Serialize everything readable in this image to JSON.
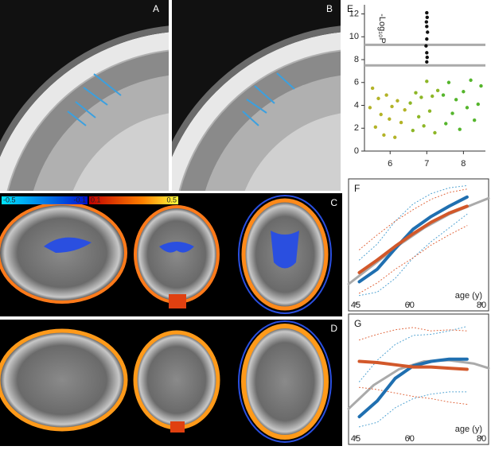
{
  "panels": {
    "a": "A",
    "b": "B",
    "c": "C",
    "d": "D",
    "e": "E",
    "f": "F",
    "g": "G"
  },
  "colorbar": {
    "labels": [
      "-0.5",
      "-0.1",
      "0.1",
      "0.5"
    ]
  },
  "chart_data": [
    {
      "type": "scatter",
      "ylabel": "-Log₁₀P",
      "xlim": [
        5.3,
        8.6
      ],
      "ylim": [
        0,
        12.8
      ],
      "xticks": [
        6,
        7,
        8
      ],
      "yticks": [
        0,
        2,
        4,
        6,
        8,
        10,
        12
      ],
      "hlines": [
        9.3,
        7.5
      ],
      "hline_color": "#aaaaaa",
      "series": [
        {
          "color": "#b3b327",
          "x": [
            5.45,
            5.52,
            5.6,
            5.68,
            5.75,
            5.83,
            5.9,
            5.98,
            6.05,
            6.13,
            6.2,
            6.3,
            6.4
          ],
          "values": [
            3.8,
            5.5,
            2.1,
            4.6,
            3.2,
            1.4,
            4.9,
            2.8,
            3.9,
            1.2,
            4.4,
            2.5,
            3.6
          ]
        },
        {
          "color": "#8db626",
          "x": [
            6.55,
            6.62,
            6.7,
            6.78,
            6.85,
            6.92,
            7.0,
            7.08,
            7.15,
            7.22,
            7.3
          ],
          "values": [
            4.2,
            1.8,
            5.1,
            3.0,
            4.7,
            2.2,
            6.1,
            3.5,
            4.8,
            1.6,
            5.3
          ]
        },
        {
          "color": "#55b52c",
          "x": [
            7.45,
            7.52,
            7.6,
            7.7,
            7.8,
            7.9,
            8.0,
            8.1,
            8.2,
            8.3,
            8.4,
            8.48
          ],
          "values": [
            4.9,
            2.4,
            6.0,
            3.3,
            4.5,
            1.9,
            5.2,
            3.8,
            6.2,
            2.7,
            4.1,
            5.7
          ]
        },
        {
          "color": "#111111",
          "x": [
            7.0,
            7.01,
            6.99,
            7.0,
            7.02,
            7.0,
            6.98,
            7.0,
            7.01,
            7.0
          ],
          "values": [
            12.1,
            11.7,
            11.3,
            10.9,
            10.4,
            9.8,
            9.2,
            8.6,
            8.2,
            7.8
          ]
        }
      ]
    },
    {
      "type": "line",
      "xlabel": "age (y)",
      "xlim": [
        43,
        82
      ],
      "ylim": [
        0,
        10
      ],
      "xticks": [
        45,
        60,
        80
      ],
      "series": [
        {
          "color": "#aaaaaa",
          "width": 3,
          "dash": "none",
          "x": [
            43,
            50,
            57,
            64,
            71,
            78,
            82
          ],
          "values": [
            1.3,
            3.0,
            4.7,
            6.2,
            7.4,
            8.3,
            8.8
          ]
        },
        {
          "color": "#4a9fd0",
          "width": 1,
          "dash": "1 3",
          "x": [
            46,
            51,
            56,
            61,
            66,
            71,
            76
          ],
          "values": [
            3.4,
            4.8,
            6.8,
            8.3,
            9.2,
            9.7,
            9.9
          ]
        },
        {
          "color": "#4a9fd0",
          "width": 1,
          "dash": "1 3",
          "x": [
            46,
            51,
            56,
            61,
            66,
            71,
            76
          ],
          "values": [
            0.3,
            0.6,
            1.8,
            3.6,
            5.0,
            6.2,
            7.4
          ]
        },
        {
          "color": "#e0643a",
          "width": 1,
          "dash": "1 3",
          "x": [
            46,
            51,
            56,
            61,
            66,
            71,
            76
          ],
          "values": [
            4.3,
            5.6,
            6.8,
            7.8,
            8.7,
            9.3,
            9.6
          ]
        },
        {
          "color": "#e0643a",
          "width": 1,
          "dash": "1 3",
          "x": [
            46,
            51,
            56,
            61,
            66,
            71,
            76
          ],
          "values": [
            0.5,
            1.4,
            2.6,
            3.6,
            4.7,
            5.6,
            6.4
          ]
        },
        {
          "color": "#1f6fb0",
          "width": 4,
          "dash": "none",
          "x": [
            46,
            51,
            56,
            61,
            66,
            71,
            76
          ],
          "values": [
            1.5,
            2.6,
            4.4,
            6.1,
            7.2,
            8.1,
            8.9
          ]
        },
        {
          "color": "#d2582a",
          "width": 4,
          "dash": "none",
          "x": [
            46,
            51,
            56,
            61,
            66,
            71,
            76
          ],
          "values": [
            2.3,
            3.4,
            4.6,
            5.7,
            6.7,
            7.5,
            8.1
          ]
        }
      ]
    },
    {
      "type": "line",
      "xlabel": "age (y)",
      "xlim": [
        43,
        82
      ],
      "ylim": [
        0,
        10
      ],
      "xticks": [
        45,
        60,
        80
      ],
      "series": [
        {
          "color": "#aaaaaa",
          "width": 3,
          "dash": "none",
          "x": [
            43,
            50,
            57,
            64,
            71,
            78,
            82
          ],
          "values": [
            2.1,
            4.2,
            5.6,
            6.3,
            6.4,
            6.1,
            5.7
          ]
        },
        {
          "color": "#4a9fd0",
          "width": 1,
          "dash": "1 3",
          "x": [
            46,
            51,
            56,
            61,
            66,
            71,
            76
          ],
          "values": [
            4.5,
            6.4,
            7.8,
            8.6,
            8.7,
            9.0,
            9.4
          ]
        },
        {
          "color": "#4a9fd0",
          "width": 1,
          "dash": "1 3",
          "x": [
            46,
            51,
            56,
            61,
            66,
            71,
            76
          ],
          "values": [
            0.5,
            0.9,
            2.2,
            3.0,
            3.4,
            3.6,
            3.6
          ]
        },
        {
          "color": "#e0643a",
          "width": 1,
          "dash": "1 3",
          "x": [
            46,
            51,
            56,
            61,
            66,
            71,
            76
          ],
          "values": [
            8.2,
            8.7,
            9.1,
            9.3,
            9.0,
            9.1,
            9.0
          ]
        },
        {
          "color": "#e0643a",
          "width": 1,
          "dash": "1 3",
          "x": [
            46,
            51,
            56,
            61,
            66,
            71,
            76
          ],
          "values": [
            4.0,
            3.8,
            3.5,
            3.2,
            3.0,
            2.7,
            2.5
          ]
        },
        {
          "color": "#1f6fb0",
          "width": 4,
          "dash": "none",
          "x": [
            46,
            51,
            56,
            61,
            66,
            71,
            76
          ],
          "values": [
            1.4,
            2.8,
            4.8,
            5.9,
            6.3,
            6.5,
            6.5
          ]
        },
        {
          "color": "#d2582a",
          "width": 4,
          "dash": "none",
          "x": [
            46,
            51,
            56,
            61,
            66,
            71,
            76
          ],
          "values": [
            6.3,
            6.2,
            6.0,
            5.8,
            5.8,
            5.7,
            5.6
          ]
        }
      ]
    }
  ]
}
